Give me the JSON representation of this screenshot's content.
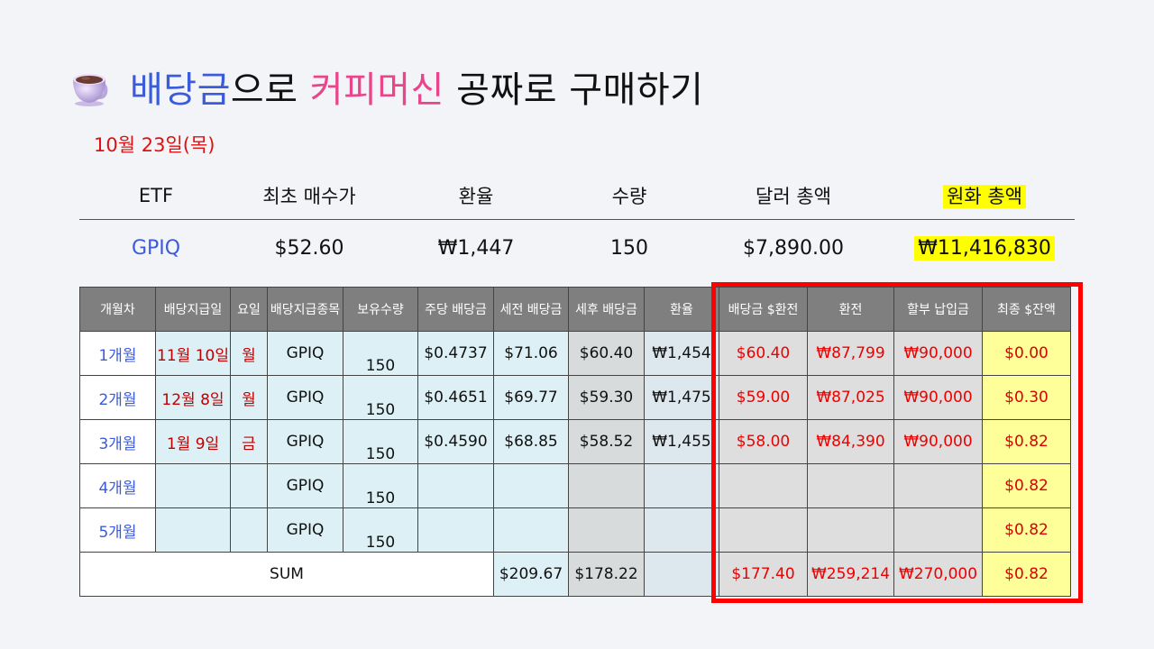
{
  "title": {
    "part1": "배당금",
    "part2": "으로 ",
    "part3": "커피머신",
    "part4": " 공짜로 구매하기"
  },
  "date": "10월 23일(목)",
  "summary": {
    "headers": [
      "ETF",
      "최초 매수가",
      "환율",
      "수량",
      "달러 총액",
      "원화 총액"
    ],
    "values": [
      "GPIQ",
      "$52.60",
      "₩1,447",
      "150",
      "$7,890.00",
      "₩11,416,830"
    ]
  },
  "table": {
    "headers": [
      "개월차",
      "배당지급일",
      "요일",
      "배당지급종목",
      "보유수량",
      "주당 배당금",
      "세전 배당금",
      "세후 배당금",
      "환율",
      "배당금 $환전",
      "환전",
      "할부 납입금",
      "최종 $잔액"
    ],
    "rows": [
      {
        "month": "1개월",
        "paydate": "11월 10일",
        "day": "월",
        "ticker": "GPIQ",
        "qty": "150",
        "per_share": "$0.4737",
        "pretax": "$71.06",
        "aftertax": "$60.40",
        "fx": "₩1,454",
        "usd_exchanged": "$60.40",
        "krw_exchanged": "₩87,799",
        "installment": "₩90,000",
        "balance": "$0.00"
      },
      {
        "month": "2개월",
        "paydate": "12월 8일",
        "day": "월",
        "ticker": "GPIQ",
        "qty": "150",
        "per_share": "$0.4651",
        "pretax": "$69.77",
        "aftertax": "$59.30",
        "fx": "₩1,475",
        "usd_exchanged": "$59.00",
        "krw_exchanged": "₩87,025",
        "installment": "₩90,000",
        "balance": "$0.30"
      },
      {
        "month": "3개월",
        "paydate": "1월 9일",
        "day": "금",
        "ticker": "GPIQ",
        "qty": "150",
        "per_share": "$0.4590",
        "pretax": "$68.85",
        "aftertax": "$58.52",
        "fx": "₩1,455",
        "usd_exchanged": "$58.00",
        "krw_exchanged": "₩84,390",
        "installment": "₩90,000",
        "balance": "$0.82"
      },
      {
        "month": "4개월",
        "paydate": "",
        "day": "",
        "ticker": "GPIQ",
        "qty": "150",
        "per_share": "",
        "pretax": "",
        "aftertax": "",
        "fx": "",
        "usd_exchanged": "",
        "krw_exchanged": "",
        "installment": "",
        "balance": "$0.82"
      },
      {
        "month": "5개월",
        "paydate": "",
        "day": "",
        "ticker": "GPIQ",
        "qty": "150",
        "per_share": "",
        "pretax": "",
        "aftertax": "",
        "fx": "",
        "usd_exchanged": "",
        "krw_exchanged": "",
        "installment": "",
        "balance": "$0.82"
      }
    ],
    "sum": {
      "label": "SUM",
      "pretax": "$209.67",
      "aftertax": "$178.22",
      "usd_exchanged": "$177.40",
      "krw_exchanged": "₩259,214",
      "installment": "₩270,000",
      "balance": "$0.82"
    }
  },
  "colors": {
    "accent_blue": "#3b5bdb",
    "accent_pink": "#e8458a",
    "highlight_red": "#ff0000",
    "highlight_yellow": "#ffff00"
  },
  "icons": [
    "coffee-cup-icon"
  ]
}
